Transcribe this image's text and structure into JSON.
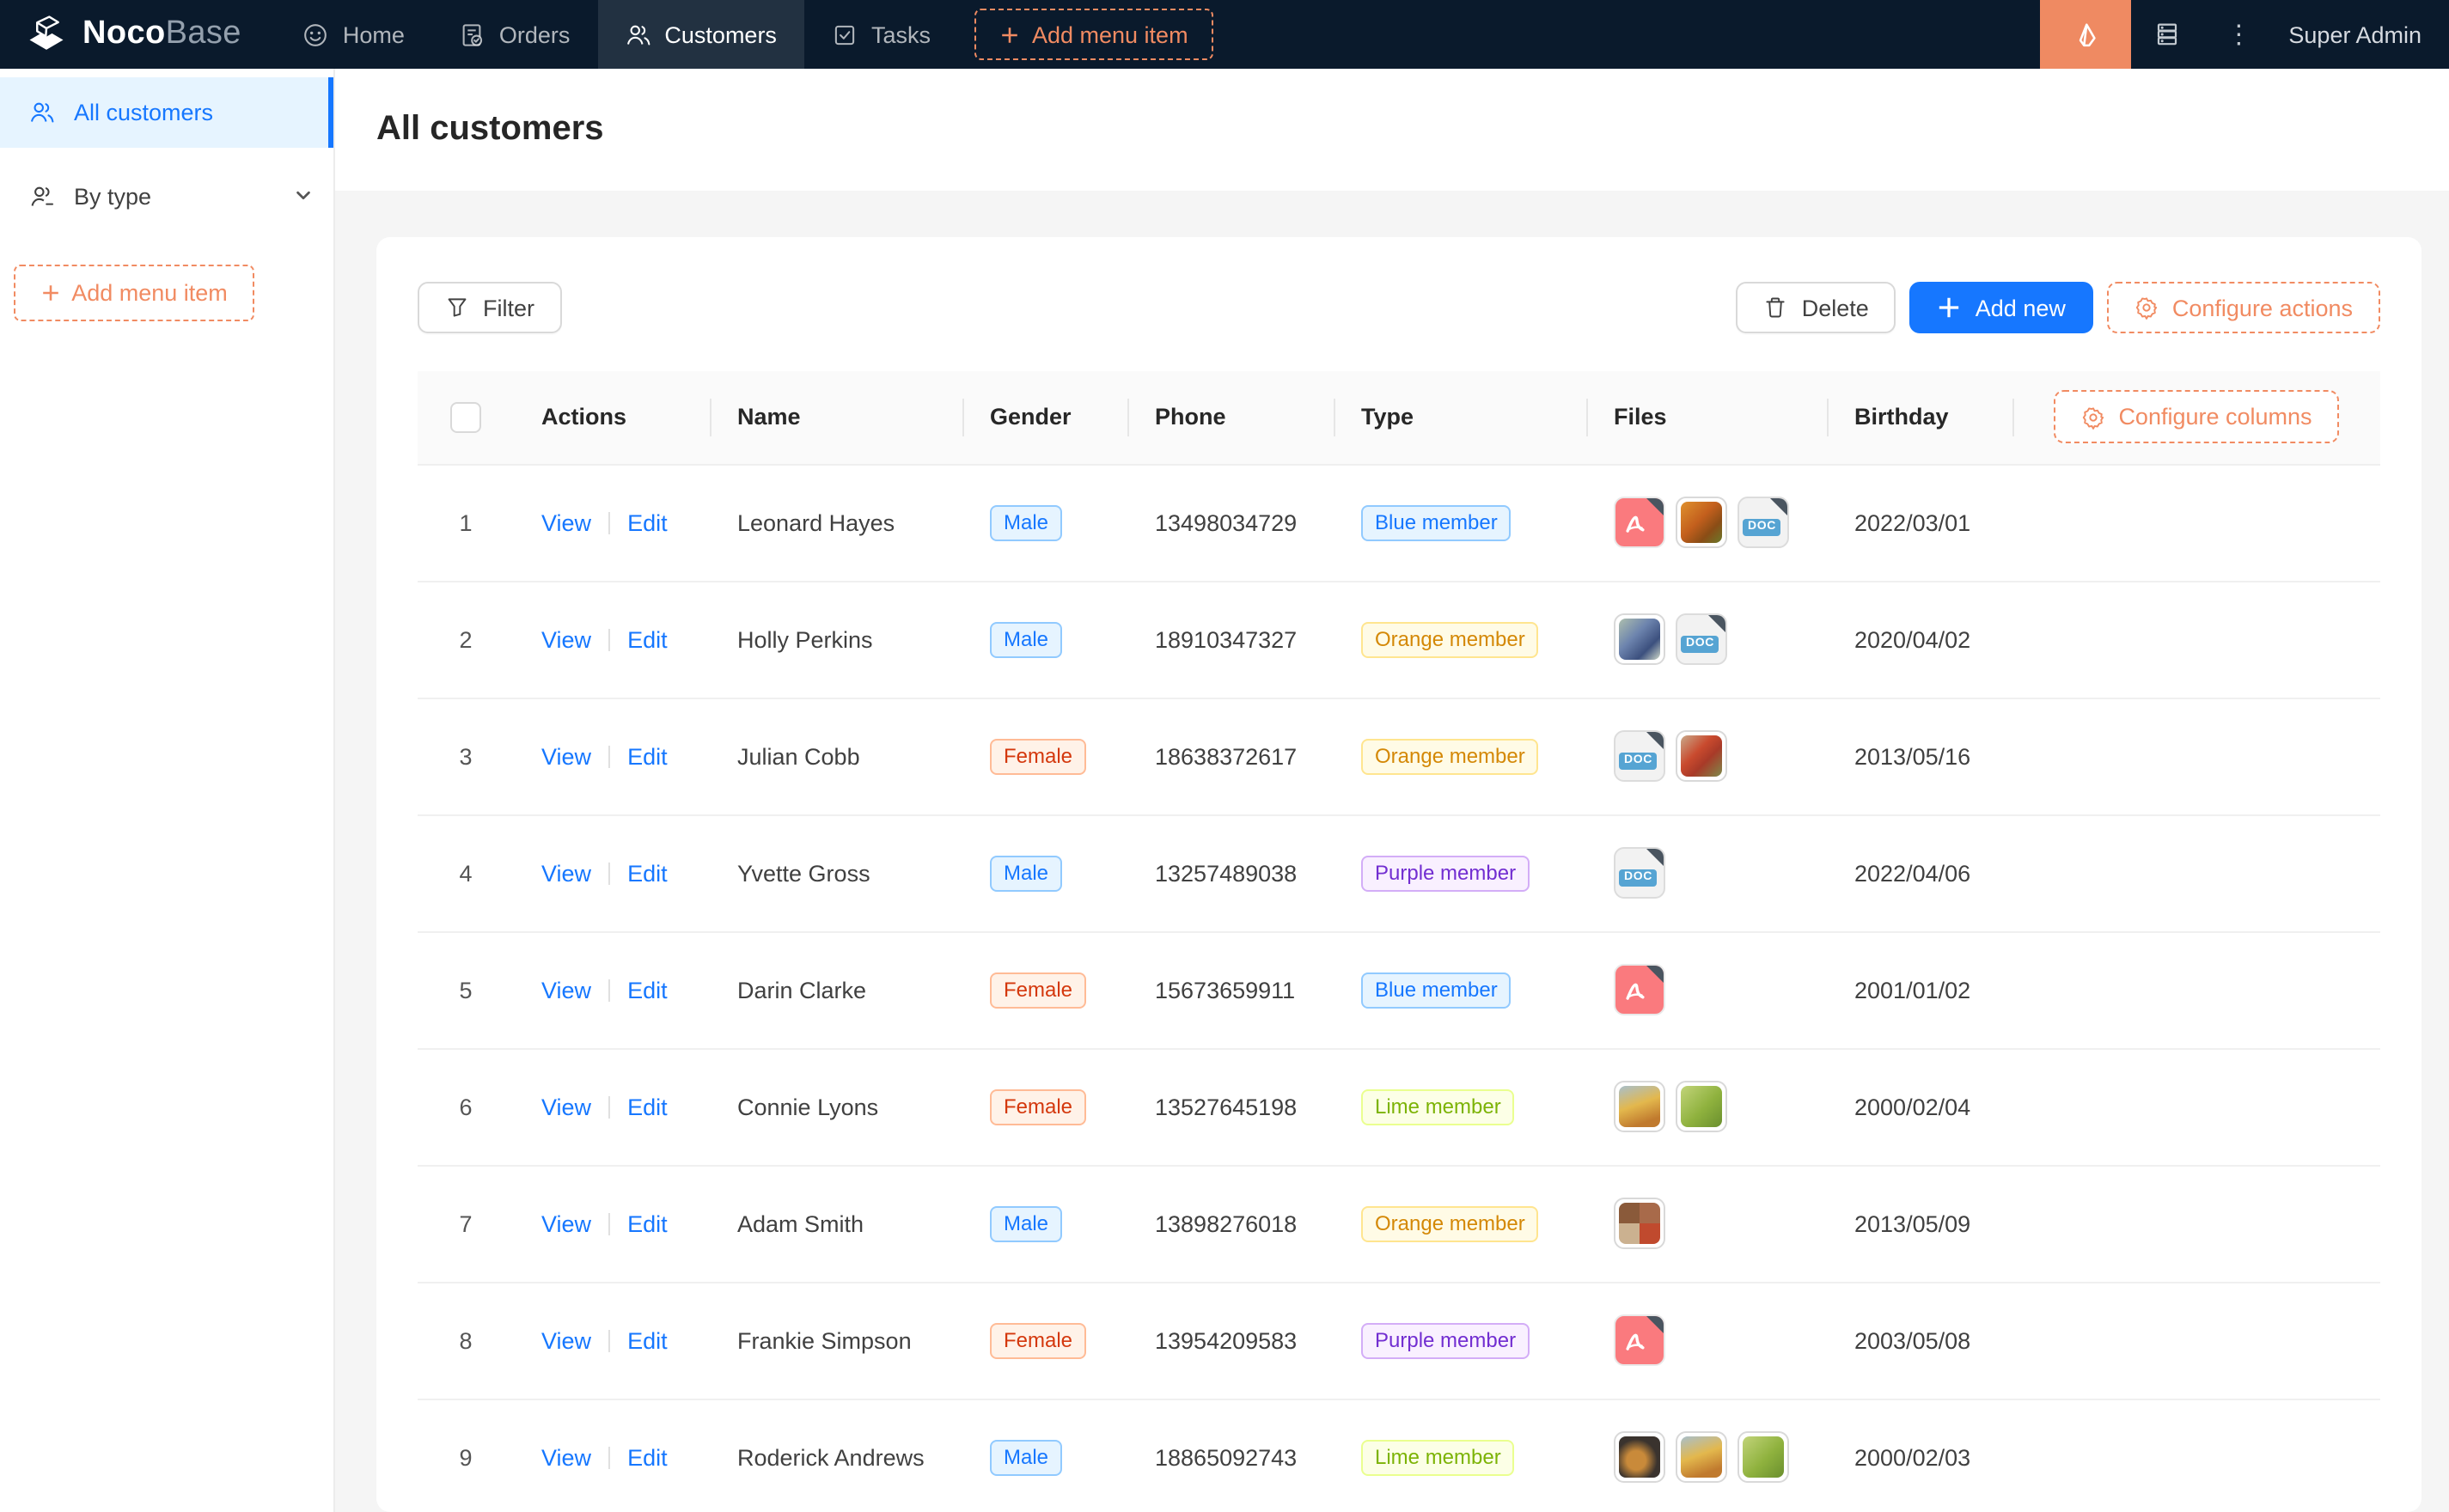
{
  "brand": {
    "bold": "Noco",
    "light": "Base"
  },
  "topnav": {
    "items": [
      {
        "label": "Home"
      },
      {
        "label": "Orders"
      },
      {
        "label": "Customers",
        "active": true
      },
      {
        "label": "Tasks"
      }
    ],
    "add_menu_item": "Add menu item",
    "user": "Super Admin"
  },
  "sidebar": {
    "items": [
      {
        "label": "All customers",
        "active": true
      },
      {
        "label": "By type"
      }
    ],
    "add_menu_item": "Add menu item"
  },
  "page": {
    "title": "All customers"
  },
  "toolbar": {
    "filter": "Filter",
    "delete": "Delete",
    "add_new": "Add new",
    "configure_actions": "Configure actions"
  },
  "table": {
    "columns": [
      "Actions",
      "Name",
      "Gender",
      "Phone",
      "Type",
      "Files",
      "Birthday"
    ],
    "configure_columns": "Configure columns",
    "action_labels": {
      "view": "View",
      "edit": "Edit"
    },
    "doc_label": "DOC",
    "rows": [
      {
        "index": "1",
        "name": "Leonard Hayes",
        "gender": "Male",
        "gender_color": "blue",
        "phone": "13498034729",
        "type": "Blue member",
        "type_color": "blue",
        "files": [
          {
            "kind": "pdf"
          },
          {
            "kind": "img",
            "palette": "img-orange"
          },
          {
            "kind": "doc"
          }
        ],
        "birthday": "2022/03/01"
      },
      {
        "index": "2",
        "name": "Holly Perkins",
        "gender": "Male",
        "gender_color": "blue",
        "phone": "18910347327",
        "type": "Orange member",
        "type_color": "gold",
        "files": [
          {
            "kind": "img",
            "palette": "img-bluegrapes"
          },
          {
            "kind": "doc"
          }
        ],
        "birthday": "2020/04/02"
      },
      {
        "index": "3",
        "name": "Julian Cobb",
        "gender": "Female",
        "gender_color": "volcano",
        "phone": "18638372617",
        "type": "Orange member",
        "type_color": "gold",
        "files": [
          {
            "kind": "doc"
          },
          {
            "kind": "img",
            "palette": "img-redfood"
          }
        ],
        "birthday": "2013/05/16"
      },
      {
        "index": "4",
        "name": "Yvette Gross",
        "gender": "Male",
        "gender_color": "blue",
        "phone": "13257489038",
        "type": "Purple member",
        "type_color": "purple",
        "files": [
          {
            "kind": "doc"
          }
        ],
        "birthday": "2022/04/06"
      },
      {
        "index": "5",
        "name": "Darin Clarke",
        "gender": "Female",
        "gender_color": "volcano",
        "phone": "15673659911",
        "type": "Blue member",
        "type_color": "blue",
        "files": [
          {
            "kind": "pdf"
          }
        ],
        "birthday": "2001/01/02"
      },
      {
        "index": "6",
        "name": "Connie Lyons",
        "gender": "Female",
        "gender_color": "volcano",
        "phone": "13527645198",
        "type": "Lime member",
        "type_color": "lime",
        "files": [
          {
            "kind": "img",
            "palette": "img-yellowfruit"
          },
          {
            "kind": "img",
            "palette": "img-greengrapes"
          }
        ],
        "birthday": "2000/02/04"
      },
      {
        "index": "7",
        "name": "Adam Smith",
        "gender": "Male",
        "gender_color": "blue",
        "phone": "13898276018",
        "type": "Orange member",
        "type_color": "gold",
        "files": [
          {
            "kind": "img",
            "palette": "img-collage"
          }
        ],
        "birthday": "2013/05/09"
      },
      {
        "index": "8",
        "name": "Frankie Simpson",
        "gender": "Female",
        "gender_color": "volcano",
        "phone": "13954209583",
        "type": "Purple member",
        "type_color": "purple",
        "files": [
          {
            "kind": "pdf"
          }
        ],
        "birthday": "2003/05/08"
      },
      {
        "index": "9",
        "name": "Roderick Andrews",
        "gender": "Male",
        "gender_color": "blue",
        "phone": "18865092743",
        "type": "Lime member",
        "type_color": "lime",
        "files": [
          {
            "kind": "img",
            "palette": "img-darkbowl"
          },
          {
            "kind": "img",
            "palette": "img-yellowfruit"
          },
          {
            "kind": "img",
            "palette": "img-greengrapes"
          }
        ],
        "birthday": "2000/02/03"
      }
    ]
  },
  "icons": {
    "home": "smiley-icon",
    "orders": "document-check-icon",
    "customers": "people-icon",
    "tasks": "checkbox-check-icon",
    "ui_editor": "highlighter-icon",
    "plugins": "database-stack-icon",
    "more": "vertical-ellipsis-icon",
    "filter": "funnel-icon",
    "delete": "trash-icon",
    "configure": "gear-icon"
  },
  "colors": {
    "nav_bg": "#0a1a2c",
    "accent_orange": "#f18b62",
    "primary_blue": "#1677ff",
    "sidebar_active_bg": "#e6f4ff",
    "page_bg": "#f5f5f5"
  }
}
